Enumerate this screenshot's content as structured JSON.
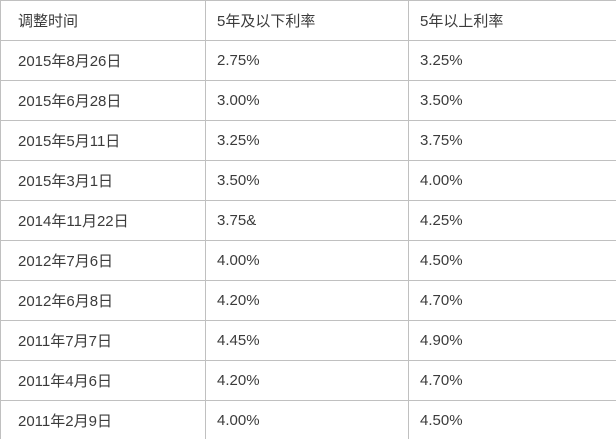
{
  "colors": {
    "text": "#3b3b3b",
    "border": "#c0c0c0",
    "background": "#ffffff"
  },
  "chart_data": {
    "type": "table",
    "columns": [
      "调整时间",
      "5年及以下利率",
      "5年以上利率"
    ],
    "rows": [
      [
        "2015年8月26日",
        "2.75%",
        "3.25%"
      ],
      [
        "2015年6月28日",
        "3.00%",
        "3.50%"
      ],
      [
        "2015年5月11日",
        "3.25%",
        "3.75%"
      ],
      [
        "2015年3月1日",
        "3.50%",
        "4.00%"
      ],
      [
        "2014年11月22日",
        "3.75&",
        "4.25%"
      ],
      [
        "2012年7月6日",
        "4.00%",
        "4.50%"
      ],
      [
        "2012年6月8日",
        "4.20%",
        "4.70%"
      ],
      [
        "2011年7月7日",
        "4.45%",
        "4.90%"
      ],
      [
        "2011年4月6日",
        "4.20%",
        "4.70%"
      ],
      [
        "2011年2月9日",
        "4.00%",
        "4.50%"
      ]
    ]
  }
}
